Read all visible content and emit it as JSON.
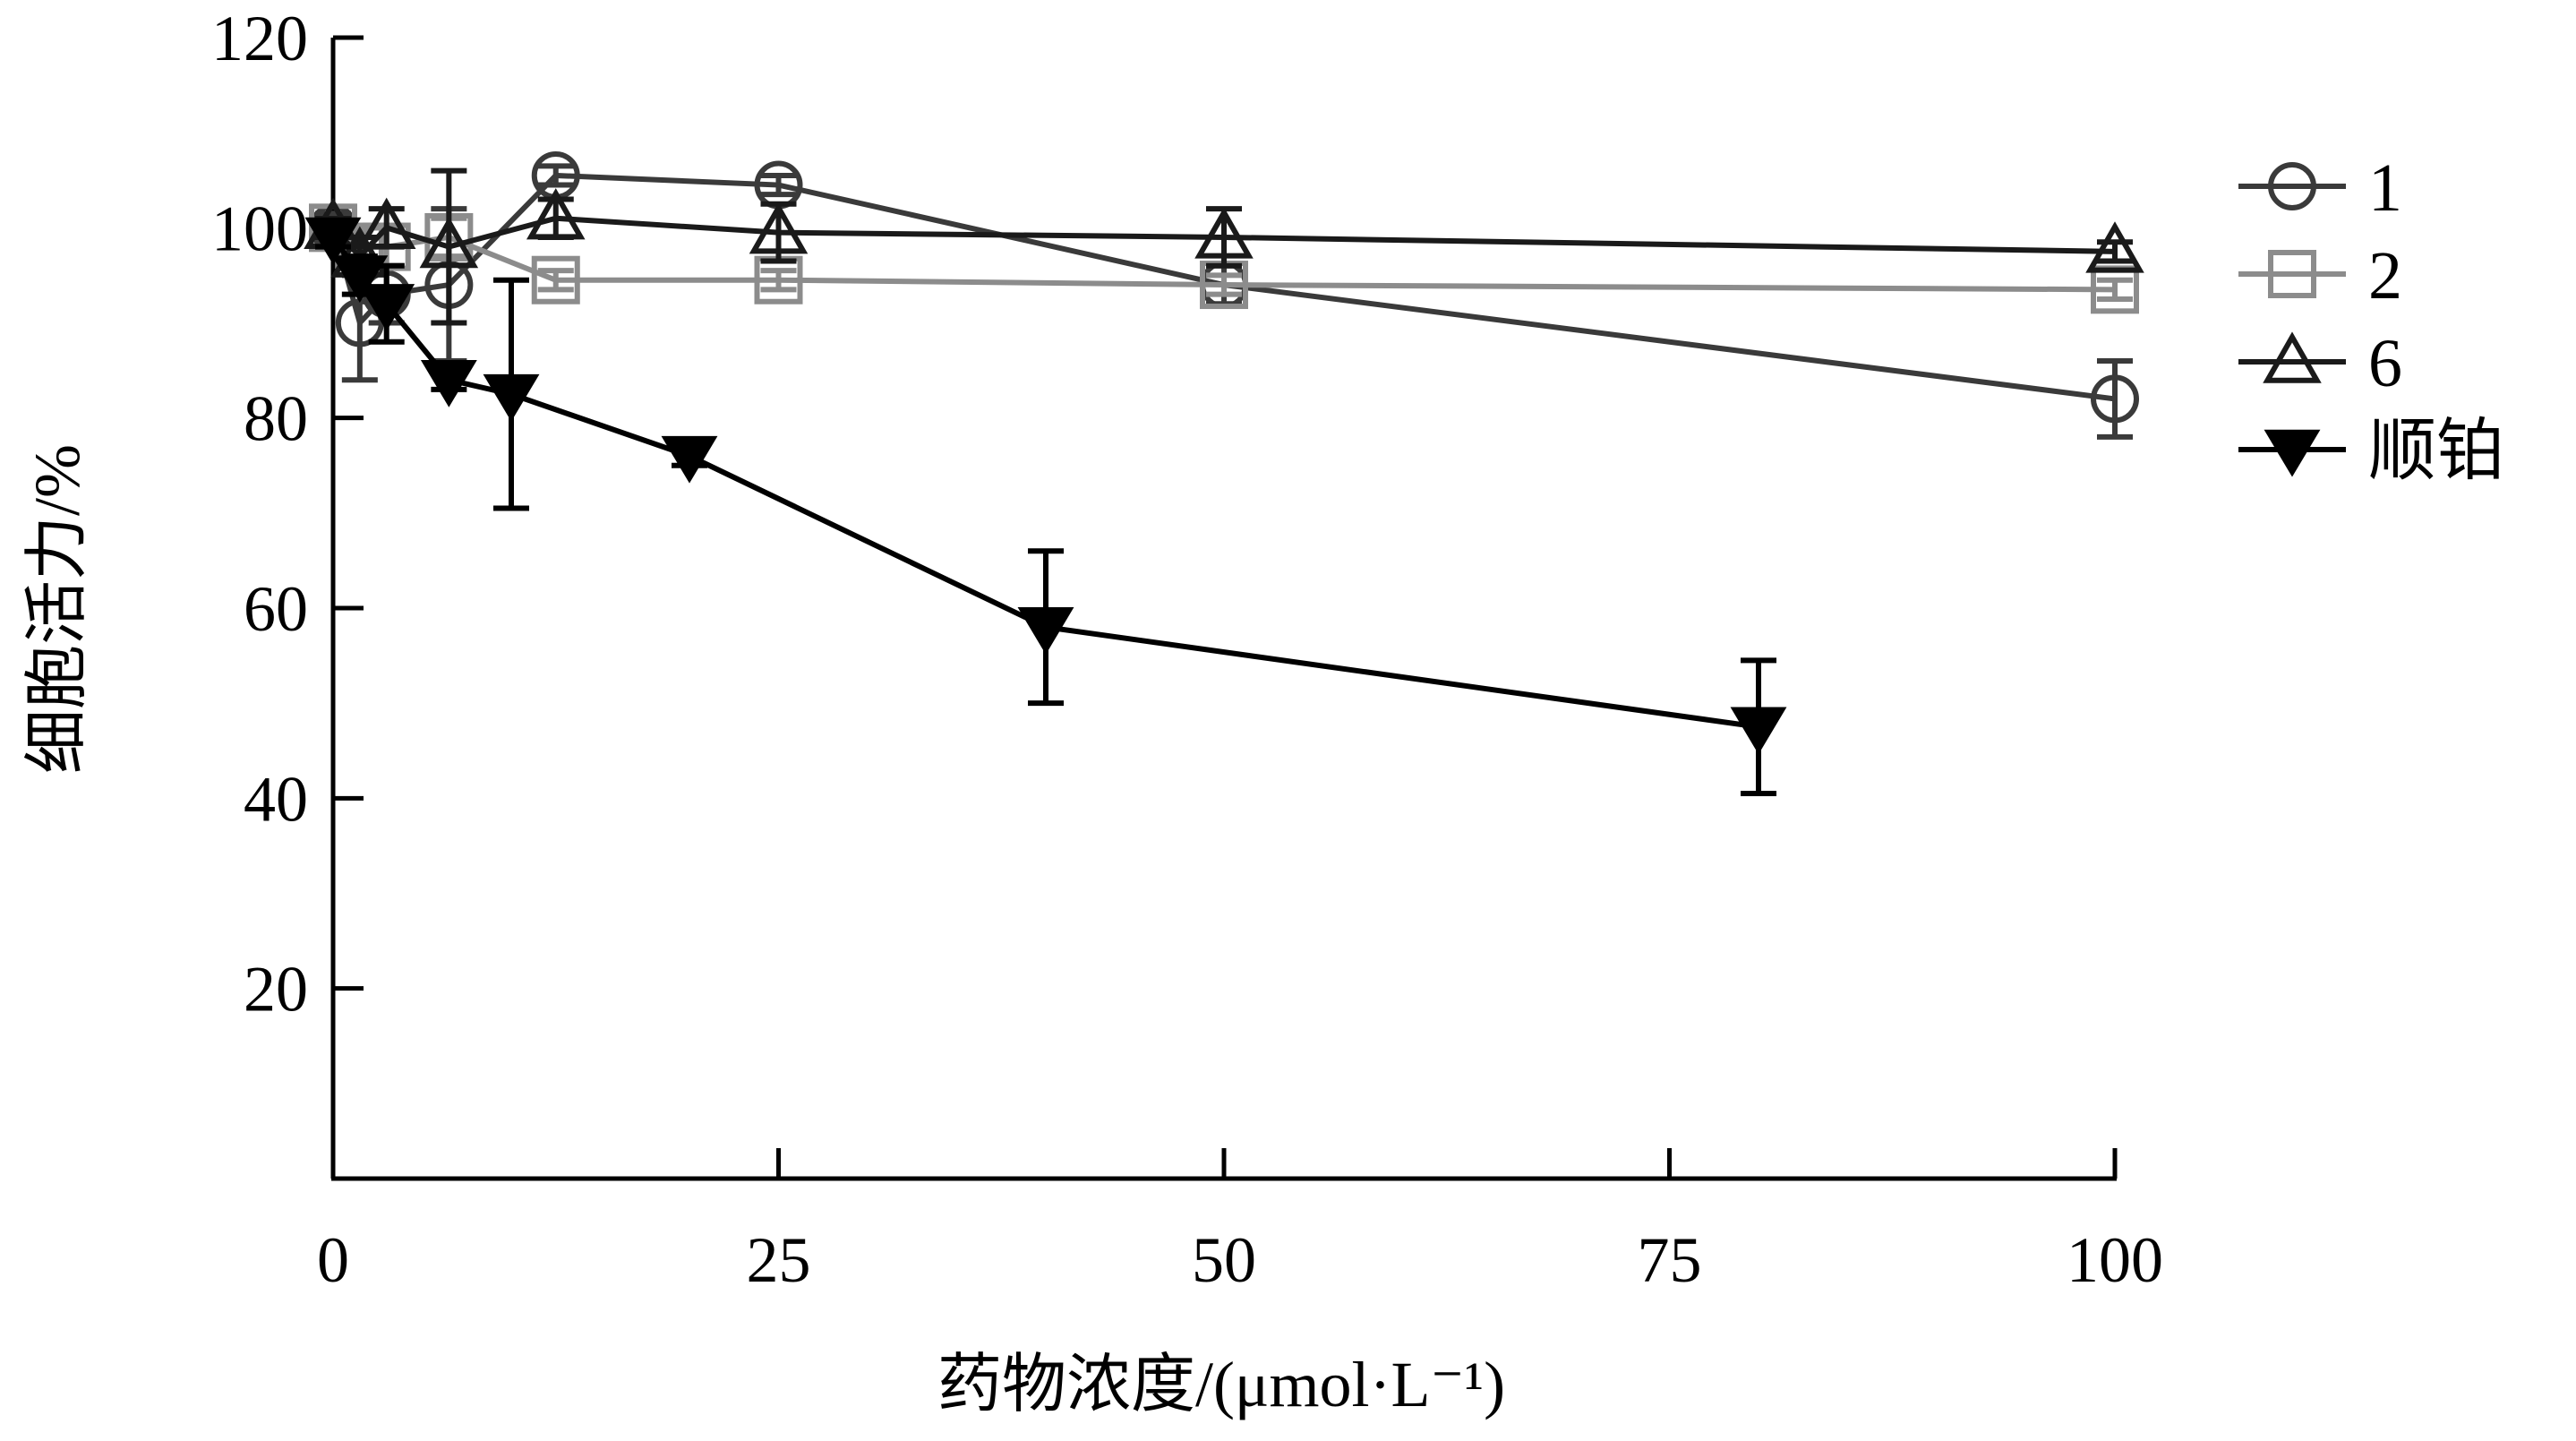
{
  "chart_data": {
    "type": "line",
    "xlabel": "药物浓度/(μmol·L⁻¹)",
    "ylabel": "细胞活力/%",
    "xlim": [
      0,
      100
    ],
    "ylim": [
      0,
      120
    ],
    "xticks": [
      0,
      25,
      50,
      75,
      100
    ],
    "yticks": [
      20,
      40,
      60,
      80,
      100,
      120
    ],
    "grid": false,
    "legend_position": "right",
    "series": [
      {
        "name": "1",
        "color": "#3a3a3a",
        "marker": "circle",
        "x": [
          0,
          1.5,
          3,
          6.5,
          12.5,
          25,
          50,
          100
        ],
        "y": [
          100,
          90,
          93,
          94,
          105.5,
          104.5,
          94,
          82
        ],
        "err": [
          1.5,
          6,
          3,
          8,
          1,
          1,
          2,
          4
        ]
      },
      {
        "name": "2",
        "color": "#8c8c8c",
        "marker": "square",
        "x": [
          0,
          1.5,
          3,
          6.5,
          12.5,
          25,
          50,
          100
        ],
        "y": [
          100,
          98,
          98,
          99,
          94.5,
          94.5,
          94,
          93.5
        ],
        "err": [
          1,
          2,
          2,
          2,
          1,
          1,
          1,
          1
        ]
      },
      {
        "name": "6",
        "color": "#1a1a1a",
        "marker": "triangle",
        "x": [
          0,
          1.5,
          3,
          6.5,
          12.5,
          25,
          50,
          100
        ],
        "y": [
          100,
          97,
          100,
          98,
          101,
          99.5,
          99,
          97.5
        ],
        "err": [
          1,
          2,
          2,
          8,
          2,
          3,
          3,
          1
        ]
      },
      {
        "name": "顺铂",
        "color": "#000000",
        "marker": "triangle-down",
        "x": [
          0,
          1.5,
          3,
          6.5,
          10,
          20,
          40,
          80
        ],
        "y": [
          99,
          95,
          92,
          84,
          82.5,
          76,
          58,
          47.5
        ],
        "err": [
          1,
          2,
          4,
          1,
          12,
          1,
          8,
          7
        ]
      }
    ]
  }
}
